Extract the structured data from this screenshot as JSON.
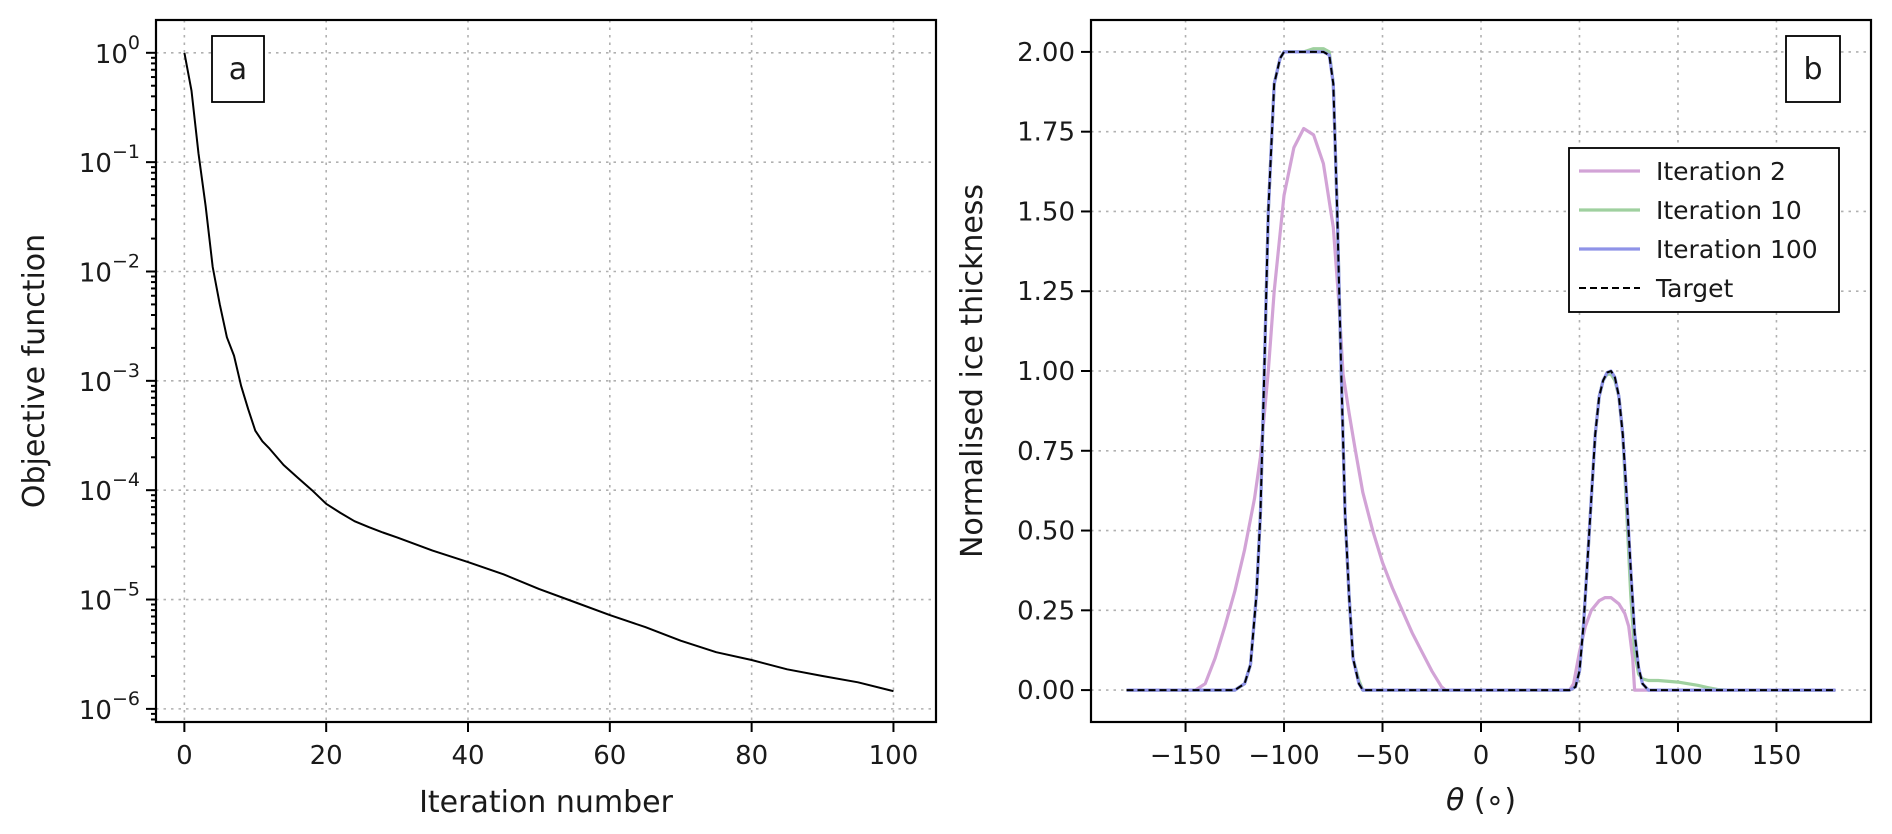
{
  "chart_data": [
    {
      "type": "line",
      "panel_label": "a",
      "xlabel": "Iteration number",
      "ylabel": "Objective function",
      "yscale": "log",
      "xlim": [
        -4,
        106
      ],
      "ylim_log10": [
        -6.12,
        0.3
      ],
      "xticks": [
        0,
        20,
        40,
        60,
        80,
        100
      ],
      "yticks": [
        {
          "base": "10",
          "exp": "0",
          "log10": 0
        },
        {
          "base": "10",
          "exp": "−1",
          "log10": -1
        },
        {
          "base": "10",
          "exp": "−2",
          "log10": -2
        },
        {
          "base": "10",
          "exp": "−3",
          "log10": -3
        },
        {
          "base": "10",
          "exp": "−4",
          "log10": -4
        },
        {
          "base": "10",
          "exp": "−5",
          "log10": -5
        },
        {
          "base": "10",
          "exp": "−6",
          "log10": -6
        }
      ],
      "grid": true,
      "series": [
        {
          "color": "#000000",
          "x": [
            0,
            1,
            2,
            3,
            4,
            5,
            6,
            7,
            8,
            9,
            10,
            11,
            12,
            14,
            16,
            18,
            20,
            22,
            24,
            26,
            28,
            30,
            35,
            40,
            45,
            50,
            55,
            60,
            65,
            70,
            75,
            80,
            85,
            90,
            95,
            100
          ],
          "y": [
            1.0,
            0.45,
            0.12,
            0.04,
            0.011,
            0.005,
            0.0025,
            0.0017,
            0.0009,
            0.00055,
            0.00035,
            0.00028,
            0.00024,
            0.00017,
            0.00013,
            0.0001,
            7.5e-05,
            6.2e-05,
            5.2e-05,
            4.6e-05,
            4.1e-05,
            3.7e-05,
            2.8e-05,
            2.2e-05,
            1.7e-05,
            1.25e-05,
            9.5e-06,
            7.2e-06,
            5.6e-06,
            4.2e-06,
            3.3e-06,
            2.8e-06,
            2.3e-06,
            2e-06,
            1.75e-06,
            1.45e-06
          ]
        }
      ]
    },
    {
      "type": "line",
      "panel_label": "b",
      "xlabel_symbol": "θ",
      "xlabel_unit": " (∘)",
      "ylabel": "Normalised ice thickness",
      "xlim": [
        -198,
        198
      ],
      "ylim": [
        -0.1,
        2.1
      ],
      "xticks": [
        {
          "v": -150,
          "label": "−150"
        },
        {
          "v": -100,
          "label": "−100"
        },
        {
          "v": -50,
          "label": "−50"
        },
        {
          "v": 0,
          "label": "0"
        },
        {
          "v": 50,
          "label": "50"
        },
        {
          "v": 100,
          "label": "100"
        },
        {
          "v": 150,
          "label": "150"
        }
      ],
      "yticks": [
        {
          "v": 0,
          "label": "0.00"
        },
        {
          "v": 0.25,
          "label": "0.25"
        },
        {
          "v": 0.5,
          "label": "0.50"
        },
        {
          "v": 0.75,
          "label": "0.75"
        },
        {
          "v": 1.0,
          "label": "1.00"
        },
        {
          "v": 1.25,
          "label": "1.25"
        },
        {
          "v": 1.5,
          "label": "1.50"
        },
        {
          "v": 1.75,
          "label": "1.75"
        },
        {
          "v": 2.0,
          "label": "2.00"
        }
      ],
      "grid": true,
      "legend_position": "upper-right",
      "series": [
        {
          "name": "Iteration 2",
          "color": "#d2a3d6",
          "style": "solid",
          "x": [
            -180,
            -145,
            -140,
            -135,
            -130,
            -125,
            -120,
            -115,
            -112,
            -108,
            -105,
            -100,
            -95,
            -90,
            -85,
            -80,
            -75,
            -72,
            -70,
            -67,
            -64,
            -60,
            -55,
            -50,
            -45,
            -40,
            -35,
            -30,
            -25,
            -20,
            -18,
            45,
            47,
            50,
            53,
            56,
            60,
            63,
            66,
            70,
            73,
            75,
            77,
            78,
            180
          ],
          "y": [
            0,
            0,
            0.02,
            0.1,
            0.2,
            0.31,
            0.44,
            0.6,
            0.73,
            1.0,
            1.25,
            1.55,
            1.7,
            1.76,
            1.74,
            1.65,
            1.45,
            1.2,
            0.99,
            0.87,
            0.76,
            0.62,
            0.5,
            0.4,
            0.32,
            0.25,
            0.18,
            0.12,
            0.06,
            0.01,
            0,
            0,
            0.02,
            0.12,
            0.2,
            0.25,
            0.28,
            0.29,
            0.29,
            0.27,
            0.24,
            0.2,
            0.1,
            0,
            0
          ]
        },
        {
          "name": "Iteration 10",
          "color": "#9fd09f",
          "style": "solid",
          "x": [
            -180,
            -125,
            -120,
            -117,
            -114,
            -112,
            -110,
            -108,
            -105,
            -102,
            -100,
            -95,
            -90,
            -85,
            -80,
            -77,
            -75,
            -73,
            -71,
            -69,
            -67,
            -65,
            -62,
            -60,
            45,
            48,
            50,
            52,
            54,
            56,
            58,
            60,
            62,
            64,
            66,
            68,
            70,
            72,
            74,
            76,
            78,
            80,
            82,
            85,
            90,
            100,
            105,
            110,
            115,
            120,
            125,
            180
          ],
          "y": [
            0,
            0,
            0.02,
            0.08,
            0.3,
            0.55,
            1.0,
            1.5,
            1.9,
            1.98,
            2.0,
            2.0,
            2.0,
            2.01,
            2.01,
            2.0,
            1.9,
            1.5,
            1.0,
            0.55,
            0.3,
            0.1,
            0.03,
            0,
            0,
            0.01,
            0.06,
            0.2,
            0.4,
            0.6,
            0.8,
            0.92,
            0.97,
            0.99,
            0.99,
            0.97,
            0.92,
            0.8,
            0.55,
            0.3,
            0.12,
            0.05,
            0.035,
            0.03,
            0.03,
            0.025,
            0.02,
            0.015,
            0.008,
            0.002,
            0,
            0
          ]
        },
        {
          "name": "Iteration 100",
          "color": "#8f93e8",
          "style": "solid",
          "x": [
            -180,
            -125,
            -120,
            -117,
            -114,
            -112,
            -110,
            -108,
            -105,
            -102,
            -100,
            -95,
            -90,
            -85,
            -80,
            -77,
            -75,
            -73,
            -71,
            -69,
            -67,
            -65,
            -62,
            -60,
            45,
            48,
            50,
            52,
            54,
            56,
            58,
            60,
            62,
            64,
            66,
            68,
            70,
            72,
            74,
            76,
            78,
            80,
            82,
            85,
            180
          ],
          "y": [
            0,
            0,
            0.02,
            0.08,
            0.3,
            0.55,
            1.0,
            1.5,
            1.9,
            1.98,
            2.0,
            2.0,
            2.0,
            2.0,
            2.0,
            1.99,
            1.9,
            1.5,
            1.0,
            0.55,
            0.3,
            0.1,
            0.02,
            0,
            0,
            0.01,
            0.06,
            0.2,
            0.4,
            0.6,
            0.8,
            0.92,
            0.97,
            0.995,
            1.0,
            0.98,
            0.92,
            0.8,
            0.6,
            0.38,
            0.18,
            0.07,
            0.02,
            0,
            0
          ]
        },
        {
          "name": "Target",
          "color": "#000000",
          "style": "dashed",
          "x": [
            -180,
            -125,
            -120,
            -117,
            -114,
            -112,
            -110,
            -108,
            -105,
            -102,
            -100,
            -95,
            -90,
            -85,
            -80,
            -77,
            -75,
            -73,
            -71,
            -69,
            -67,
            -65,
            -62,
            -60,
            45,
            48,
            50,
            52,
            54,
            56,
            58,
            60,
            62,
            64,
            66,
            68,
            70,
            72,
            74,
            76,
            78,
            80,
            82,
            85,
            180
          ],
          "y": [
            0,
            0,
            0.02,
            0.08,
            0.3,
            0.55,
            1.0,
            1.5,
            1.9,
            1.98,
            2.0,
            2.0,
            2.0,
            2.0,
            2.0,
            1.99,
            1.9,
            1.5,
            1.0,
            0.55,
            0.3,
            0.1,
            0.02,
            0,
            0,
            0.01,
            0.06,
            0.2,
            0.4,
            0.6,
            0.8,
            0.92,
            0.97,
            0.995,
            1.0,
            0.98,
            0.92,
            0.8,
            0.6,
            0.38,
            0.18,
            0.07,
            0.02,
            0,
            0
          ]
        }
      ]
    }
  ]
}
